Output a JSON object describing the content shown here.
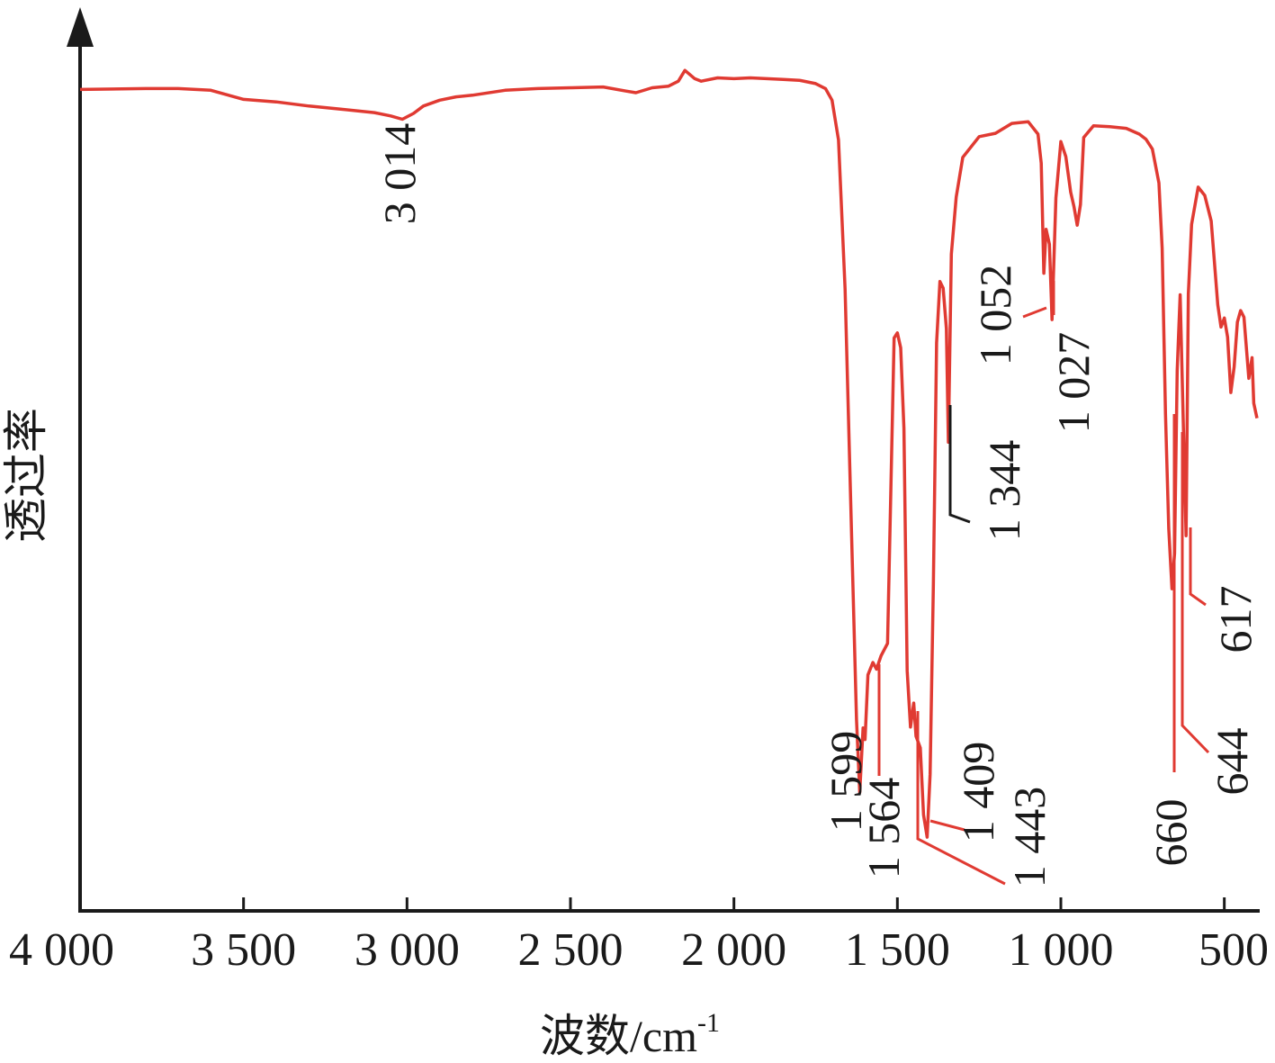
{
  "chart_data": {
    "type": "line",
    "title": "",
    "xlabel": "波数/cm",
    "xlabel_sup": "-1",
    "ylabel": "透过率",
    "xlim": [
      4000,
      400
    ],
    "ylim": [
      0,
      100
    ],
    "x_ticks": [
      4000,
      3500,
      3000,
      2500,
      2000,
      1500,
      1000,
      500
    ],
    "x_tick_labels": [
      "4 000",
      "3 500",
      "3 000",
      "2 500",
      "2 000",
      "1 500",
      "1 000",
      "500"
    ],
    "grid": false,
    "legend": "none",
    "series_color": "#e03a32",
    "series": [
      {
        "x": [
          4000,
          3800,
          3700,
          3600,
          3500,
          3400,
          3300,
          3200,
          3100,
          3050,
          3014,
          2980,
          2950,
          2900,
          2850,
          2800,
          2700,
          2600,
          2500,
          2400,
          2330,
          2300,
          2250,
          2200,
          2170,
          2150,
          2120,
          2100,
          2050,
          2000,
          1950,
          1900,
          1850,
          1800,
          1750,
          1720,
          1700,
          1680,
          1660,
          1640,
          1625,
          1615,
          1605,
          1599,
          1590,
          1575,
          1564,
          1550,
          1530,
          1510,
          1500,
          1490,
          1480,
          1470,
          1460,
          1450,
          1443,
          1430,
          1420,
          1409,
          1400,
          1390,
          1380,
          1370,
          1360,
          1350,
          1344,
          1335,
          1320,
          1300,
          1250,
          1200,
          1150,
          1100,
          1070,
          1060,
          1052,
          1045,
          1035,
          1027,
          1015,
          1000,
          985,
          970,
          960,
          950,
          940,
          930,
          900,
          850,
          800,
          760,
          740,
          720,
          700,
          690,
          680,
          670,
          660,
          652,
          644,
          635,
          625,
          617,
          610,
          600,
          580,
          560,
          540,
          520,
          510,
          500,
          490,
          480,
          470,
          460,
          450,
          440,
          425,
          415,
          410,
          400
        ],
        "y": [
          99.2,
          99.3,
          99.3,
          99.1,
          98.0,
          97.7,
          97.2,
          96.8,
          96.4,
          96.0,
          95.6,
          96.3,
          97.2,
          97.9,
          98.3,
          98.5,
          99.1,
          99.3,
          99.4,
          99.5,
          99.0,
          98.8,
          99.4,
          99.6,
          100.2,
          101.5,
          100.5,
          100.2,
          100.6,
          100.5,
          100.6,
          100.5,
          100.4,
          100.3,
          99.9,
          99.3,
          97.9,
          93.1,
          75.1,
          45.1,
          23.1,
          14.3,
          22.1,
          20.7,
          28.5,
          30.0,
          29.2,
          30.8,
          32.3,
          69.2,
          69.8,
          68.0,
          58.3,
          29.0,
          22.2,
          25.1,
          21.1,
          19.7,
          11.6,
          8.9,
          16.5,
          39.2,
          68.6,
          76.0,
          75.2,
          70.3,
          56.6,
          79.3,
          86.2,
          91.0,
          93.5,
          93.9,
          95.1,
          95.3,
          93.8,
          90.3,
          77.0,
          82.3,
          80.5,
          71.4,
          86.1,
          92.9,
          91.1,
          86.8,
          85.1,
          82.8,
          85.3,
          93.4,
          94.8,
          94.7,
          94.5,
          93.8,
          93.2,
          92.0,
          87.9,
          80.0,
          60.0,
          46.2,
          38.9,
          43.2,
          65.3,
          74.4,
          57.9,
          45.3,
          74.5,
          82.9,
          87.4,
          86.4,
          83.3,
          73.2,
          70.5,
          71.6,
          69.3,
          62.6,
          65.7,
          71.1,
          72.5,
          71.7,
          64.3,
          66.8,
          61.3,
          59.5
        ]
      }
    ],
    "annotations": [
      {
        "label": "3 014",
        "x": 3014
      },
      {
        "label": "1 599",
        "x": 1599
      },
      {
        "label": "1 564",
        "x": 1564
      },
      {
        "label": "1 443",
        "x": 1443
      },
      {
        "label": "1 409",
        "x": 1409
      },
      {
        "label": "1 344",
        "x": 1344
      },
      {
        "label": "1 052",
        "x": 1052
      },
      {
        "label": "1 027",
        "x": 1027
      },
      {
        "label": "660",
        "x": 660
      },
      {
        "label": "644",
        "x": 644
      },
      {
        "label": "617",
        "x": 617
      }
    ]
  }
}
